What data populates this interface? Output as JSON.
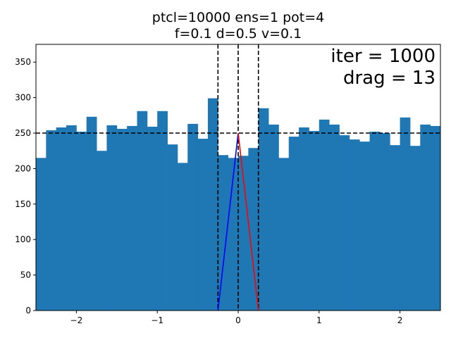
{
  "chart_data": {
    "type": "bar",
    "title_lines": [
      "ptcl=10000 ens=1 pot=4",
      "f=0.1 d=0.5 v=0.1"
    ],
    "xlim": [
      -2.5,
      2.5
    ],
    "ylim": [
      0,
      375
    ],
    "xticks": [
      -2,
      -1,
      0,
      1,
      2
    ],
    "xtick_labels": [
      "−2",
      "−1",
      "0",
      "1",
      "2"
    ],
    "yticks": [
      0,
      50,
      100,
      150,
      200,
      250,
      300,
      350
    ],
    "ytick_labels": [
      "0",
      "50",
      "100",
      "150",
      "200",
      "250",
      "300",
      "350"
    ],
    "bin_edges_start": -2.5,
    "bin_width": 0.125,
    "bar_color": "#1f77b4",
    "values": [
      215,
      254,
      258,
      261,
      252,
      273,
      225,
      261,
      256,
      260,
      281,
      259,
      281,
      234,
      208,
      263,
      242,
      299,
      219,
      215,
      218,
      229,
      285,
      262,
      215,
      245,
      258,
      253,
      269,
      262,
      247,
      241,
      238,
      252,
      250,
      233,
      272,
      232,
      262,
      260
    ],
    "reference_lines": {
      "horizontal_y": 250,
      "vertical_x": [
        -0.25,
        0,
        0.25
      ],
      "style": "dashed",
      "color": "#000000"
    },
    "series": [
      {
        "name": "",
        "color": "#0000ff",
        "x": [
          -0.25,
          0
        ],
        "y": [
          0,
          250
        ]
      },
      {
        "name": "",
        "color": "#ff0000",
        "x": [
          0,
          0.25
        ],
        "y": [
          250,
          0
        ]
      }
    ],
    "annotations": [
      "iter = 1000",
      "drag = 13"
    ]
  }
}
